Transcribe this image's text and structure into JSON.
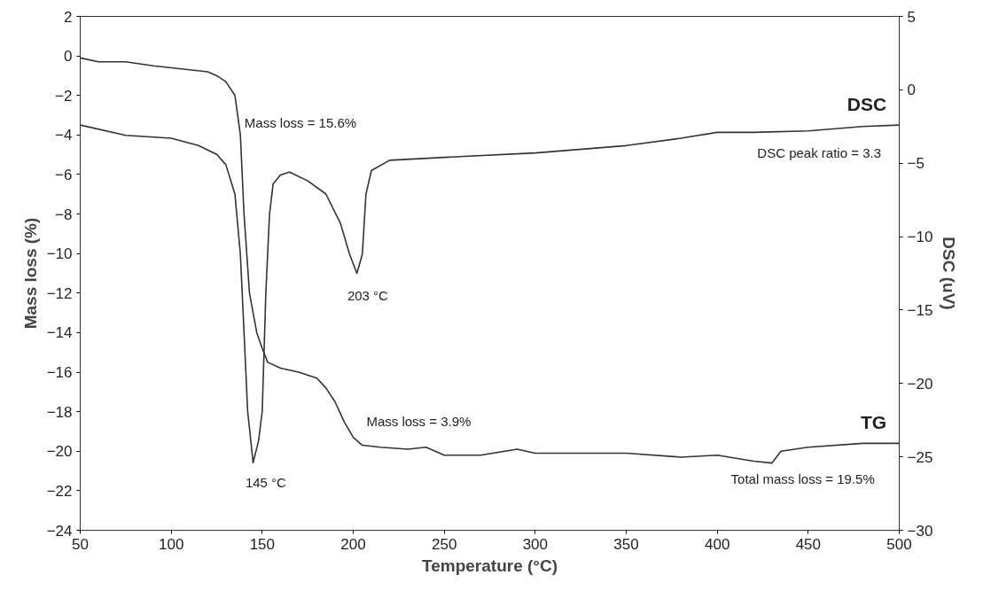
{
  "chart_data": {
    "type": "line",
    "xlabel": "Temperature (°C)",
    "ylabel": "Mass loss (%)",
    "y2label": "DSC (uV)",
    "xlim": [
      50,
      500
    ],
    "xticks": [
      50,
      100,
      150,
      200,
      250,
      300,
      350,
      400,
      450,
      500
    ],
    "ylim": [
      -24,
      2
    ],
    "yticks": [
      -24,
      -22,
      -20,
      -18,
      -16,
      -14,
      -12,
      -10,
      -8,
      -6,
      -4,
      -2,
      0,
      2
    ],
    "y2lim": [
      -30,
      5
    ],
    "y2ticks": [
      -30,
      -25,
      -20,
      -15,
      -10,
      -5,
      0,
      5
    ],
    "marker": "none",
    "line_style": "solid",
    "series": [
      {
        "name": "DSC",
        "color": "#333333",
        "axis": "y2",
        "x": [
          50,
          75,
          100,
          115,
          125,
          130,
          135,
          138,
          140,
          142,
          145,
          148,
          150,
          152,
          154,
          156,
          160,
          165,
          175,
          185,
          193,
          198,
          202,
          205,
          207,
          210,
          220,
          250,
          300,
          350,
          380,
          400,
          420,
          450,
          480,
          500
        ],
        "values": [
          -2.4,
          -3.1,
          -3.3,
          -3.8,
          -4.4,
          -5.1,
          -7.1,
          -11.2,
          -16.5,
          -21.9,
          -25.4,
          -23.9,
          -21.9,
          -13.8,
          -8.5,
          -6.4,
          -5.8,
          -5.6,
          -6.2,
          -7.1,
          -9.1,
          -11.2,
          -12.5,
          -11.2,
          -7.1,
          -5.5,
          -4.8,
          -4.6,
          -4.3,
          -3.8,
          -3.3,
          -2.9,
          -2.9,
          -2.8,
          -2.5,
          -2.4
        ]
      },
      {
        "name": "TG",
        "color": "#333333",
        "x": [
          50,
          60,
          75,
          90,
          100,
          110,
          120,
          125,
          130,
          135,
          138,
          140,
          143,
          147,
          150,
          153,
          160,
          170,
          180,
          185,
          190,
          195,
          200,
          205,
          215,
          230,
          240,
          250,
          270,
          290,
          300,
          350,
          380,
          400,
          420,
          430,
          435,
          450,
          480,
          500
        ],
        "values": [
          -0.1,
          -0.3,
          -0.3,
          -0.5,
          -0.6,
          -0.7,
          -0.8,
          -1.0,
          -1.3,
          -2.0,
          -4.0,
          -8.0,
          -12.0,
          -14.0,
          -14.8,
          -15.5,
          -15.8,
          -16.0,
          -16.3,
          -16.8,
          -17.5,
          -18.5,
          -19.3,
          -19.7,
          -19.8,
          -19.9,
          -19.8,
          -20.2,
          -20.2,
          -19.9,
          -20.1,
          -20.1,
          -20.3,
          -20.2,
          -20.5,
          -20.6,
          -20.0,
          -19.8,
          -19.6,
          -19.6
        ]
      }
    ],
    "annotations": [
      "Mass loss = 15.6%",
      "203 °C",
      "145 °C",
      "Mass loss = 3.9%",
      "Total mass loss = 19.5%",
      "DSC peak ratio = 3.3"
    ]
  }
}
